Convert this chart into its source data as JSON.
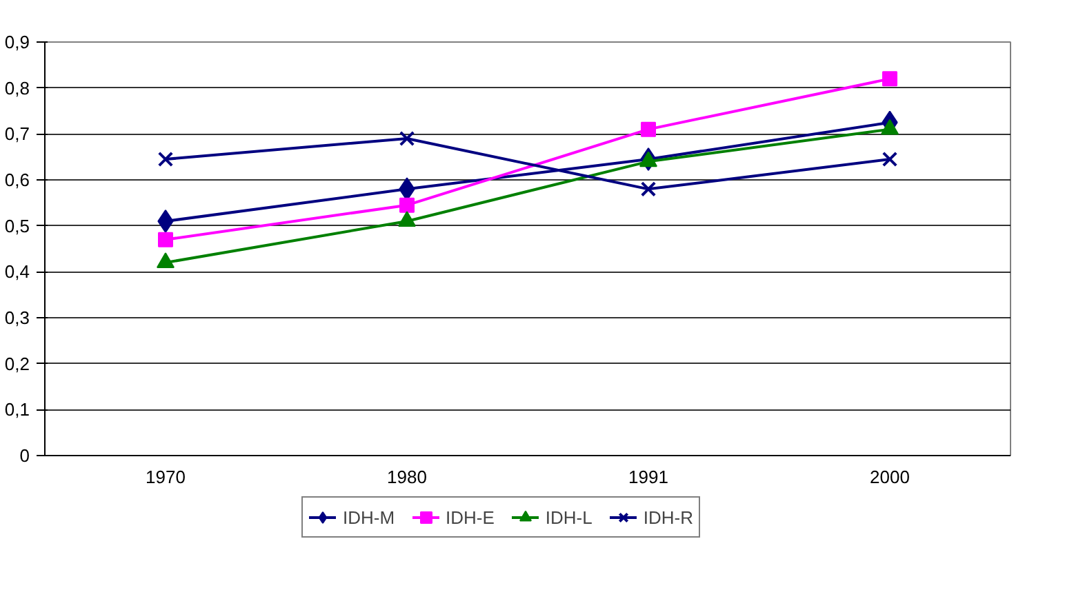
{
  "chart_data": {
    "type": "line",
    "categories": [
      "1970",
      "1980",
      "1991",
      "2000"
    ],
    "series": [
      {
        "name": "IDH-M",
        "color": "#000080",
        "marker": "diamond",
        "values": [
          0.51,
          0.58,
          0.645,
          0.725
        ]
      },
      {
        "name": "IDH-E",
        "color": "#ff00ff",
        "marker": "square",
        "values": [
          0.47,
          0.545,
          0.71,
          0.82
        ]
      },
      {
        "name": "IDH-L",
        "color": "#008000",
        "marker": "triangle",
        "values": [
          0.42,
          0.51,
          0.64,
          0.71
        ]
      },
      {
        "name": "IDH-R",
        "color": "#000080",
        "marker": "cross",
        "values": [
          0.645,
          0.69,
          0.58,
          0.645
        ]
      }
    ],
    "ylim": [
      0,
      0.9
    ],
    "yticks": [
      {
        "value": 0,
        "label": "0"
      },
      {
        "value": 0.1,
        "label": "0,1"
      },
      {
        "value": 0.2,
        "label": "0,2"
      },
      {
        "value": 0.3,
        "label": "0,3"
      },
      {
        "value": 0.4,
        "label": "0,4"
      },
      {
        "value": 0.5,
        "label": "0,5"
      },
      {
        "value": 0.6,
        "label": "0,6"
      },
      {
        "value": 0.7,
        "label": "0,7"
      },
      {
        "value": 0.8,
        "label": "0,8"
      },
      {
        "value": 0.9,
        "label": "0,9"
      }
    ],
    "grid": "y",
    "legend": "bottom"
  }
}
